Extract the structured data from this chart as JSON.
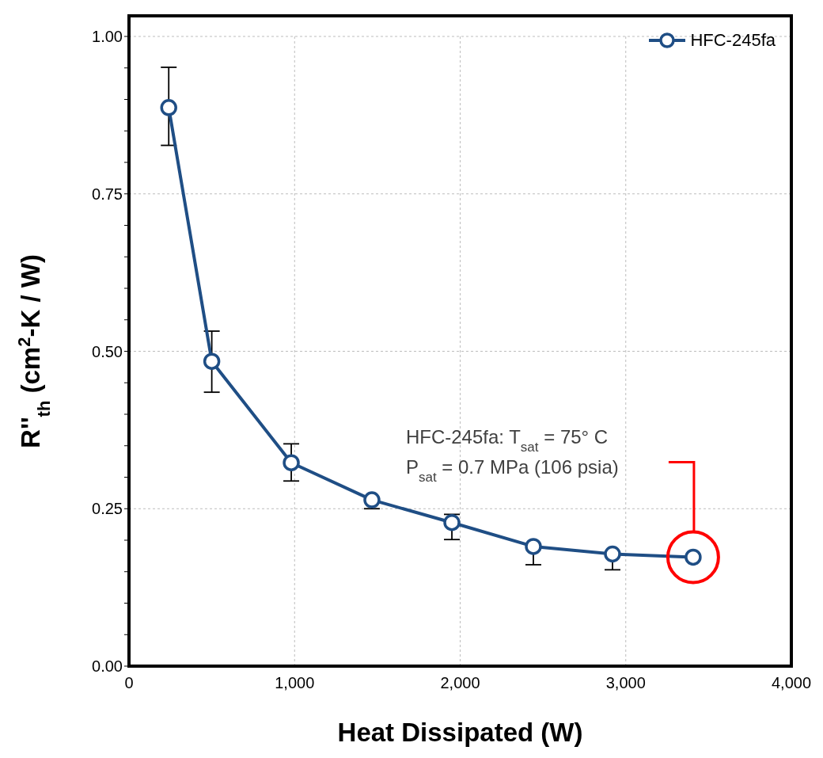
{
  "chart_data": {
    "type": "line",
    "xlabel": "Heat Dissipated  (W)",
    "ylabel": "R''$_{th}$ (cm$^{2}$-K / W)",
    "x": [
      240,
      500,
      980,
      1467,
      1950,
      2442,
      2920,
      3407
    ],
    "series": [
      {
        "name": "HFC-245fa",
        "color": "#1f4e85",
        "values": [
          0.887,
          0.484,
          0.323,
          0.264,
          0.228,
          0.19,
          0.178,
          0.173
        ],
        "errors": [
          [
            0.827,
            0.951
          ],
          [
            0.435,
            0.532
          ],
          [
            0.294,
            0.353
          ],
          [
            0.25,
            0.264
          ],
          [
            0.201,
            0.241
          ],
          [
            0.161,
            0.19
          ],
          [
            0.153,
            0.178
          ],
          null
        ]
      }
    ],
    "xlim": [
      0,
      4000
    ],
    "xticks": [
      {
        "value": 0,
        "label": "0"
      },
      {
        "value": 1000,
        "label": "1,000"
      },
      {
        "value": 2000,
        "label": "2,000"
      },
      {
        "value": 3000,
        "label": "3,000"
      },
      {
        "value": 4000,
        "label": "4,000"
      }
    ],
    "ylim": [
      0,
      1
    ],
    "yticks": [
      {
        "value": 0,
        "label": "0.00"
      },
      {
        "value": 0.05,
        "label": null
      },
      {
        "value": 0.1,
        "label": null
      },
      {
        "value": 0.15,
        "label": null
      },
      {
        "value": 0.2,
        "label": null
      },
      {
        "value": 0.25,
        "label": "0.25"
      },
      {
        "value": 0.3,
        "label": null
      },
      {
        "value": 0.35,
        "label": null
      },
      {
        "value": 0.4,
        "label": null
      },
      {
        "value": 0.45,
        "label": null
      },
      {
        "value": 0.5,
        "label": "0.50"
      },
      {
        "value": 0.55,
        "label": null
      },
      {
        "value": 0.6,
        "label": null
      },
      {
        "value": 0.65,
        "label": null
      },
      {
        "value": 0.7,
        "label": null
      },
      {
        "value": 0.75,
        "label": "0.75"
      },
      {
        "value": 0.8,
        "label": null
      },
      {
        "value": 0.85,
        "label": null
      },
      {
        "value": 0.9,
        "label": null
      },
      {
        "value": 0.95,
        "label": null
      },
      {
        "value": 1,
        "label": "1.00"
      }
    ],
    "grid": true,
    "legend": "top right",
    "marker": "circle",
    "line_style": "solid",
    "annotations": [
      "HFC-245fa: T$_{sat}$ = 75°  C",
      "P$_{sat}$ = 0.7 MPa (106 psia)"
    ]
  }
}
